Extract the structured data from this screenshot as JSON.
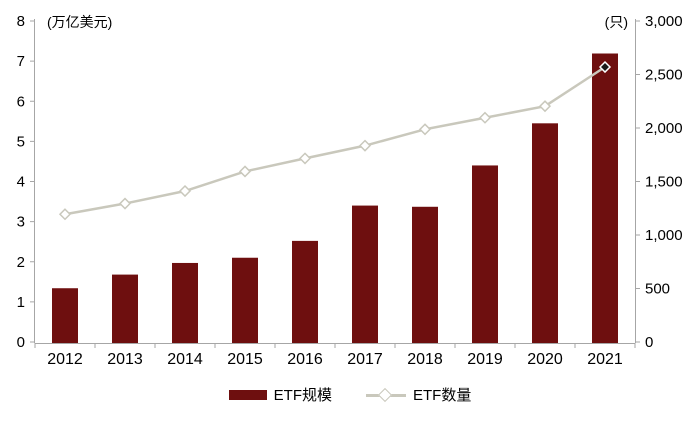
{
  "chart_data": {
    "type": "bar+line combo",
    "categories": [
      "2012",
      "2013",
      "2014",
      "2015",
      "2016",
      "2017",
      "2018",
      "2019",
      "2020",
      "2021"
    ],
    "series": [
      {
        "name": "ETF规模",
        "type": "bar",
        "axis": "left",
        "values": [
          1.34,
          1.68,
          1.97,
          2.1,
          2.52,
          3.4,
          3.37,
          4.4,
          5.45,
          7.19
        ]
      },
      {
        "name": "ETF数量",
        "type": "line",
        "axis": "right",
        "marker": "diamond",
        "last_marker_filled": true,
        "values": [
          1194,
          1294,
          1411,
          1594,
          1716,
          1835,
          1988,
          2096,
          2204,
          2570
        ]
      }
    ],
    "left_axis": {
      "label": "(万亿美元)",
      "min": 0,
      "max": 8,
      "step": 1,
      "tick_labels": [
        "0",
        "1",
        "2",
        "3",
        "4",
        "5",
        "6",
        "7",
        "8"
      ]
    },
    "right_axis": {
      "label": "(只)",
      "min": 0,
      "max": 3000,
      "step": 500,
      "tick_labels": [
        "0",
        "500",
        "1,000",
        "1,500",
        "2,000",
        "2,500",
        "3,000"
      ]
    },
    "grid": false,
    "legend_position": "bottom-center",
    "legend": [
      {
        "label": "ETF规模",
        "swatch": "bar"
      },
      {
        "label": "ETF数量",
        "swatch": "line-diamond"
      }
    ]
  },
  "colors": {
    "bar": "#6E0F0F",
    "line": "#C9C8BC",
    "marker_fill": "#FFFFFF",
    "last_marker_fill": "#1A1A1A",
    "axis": "#A6A6A6",
    "text": "#000000"
  }
}
